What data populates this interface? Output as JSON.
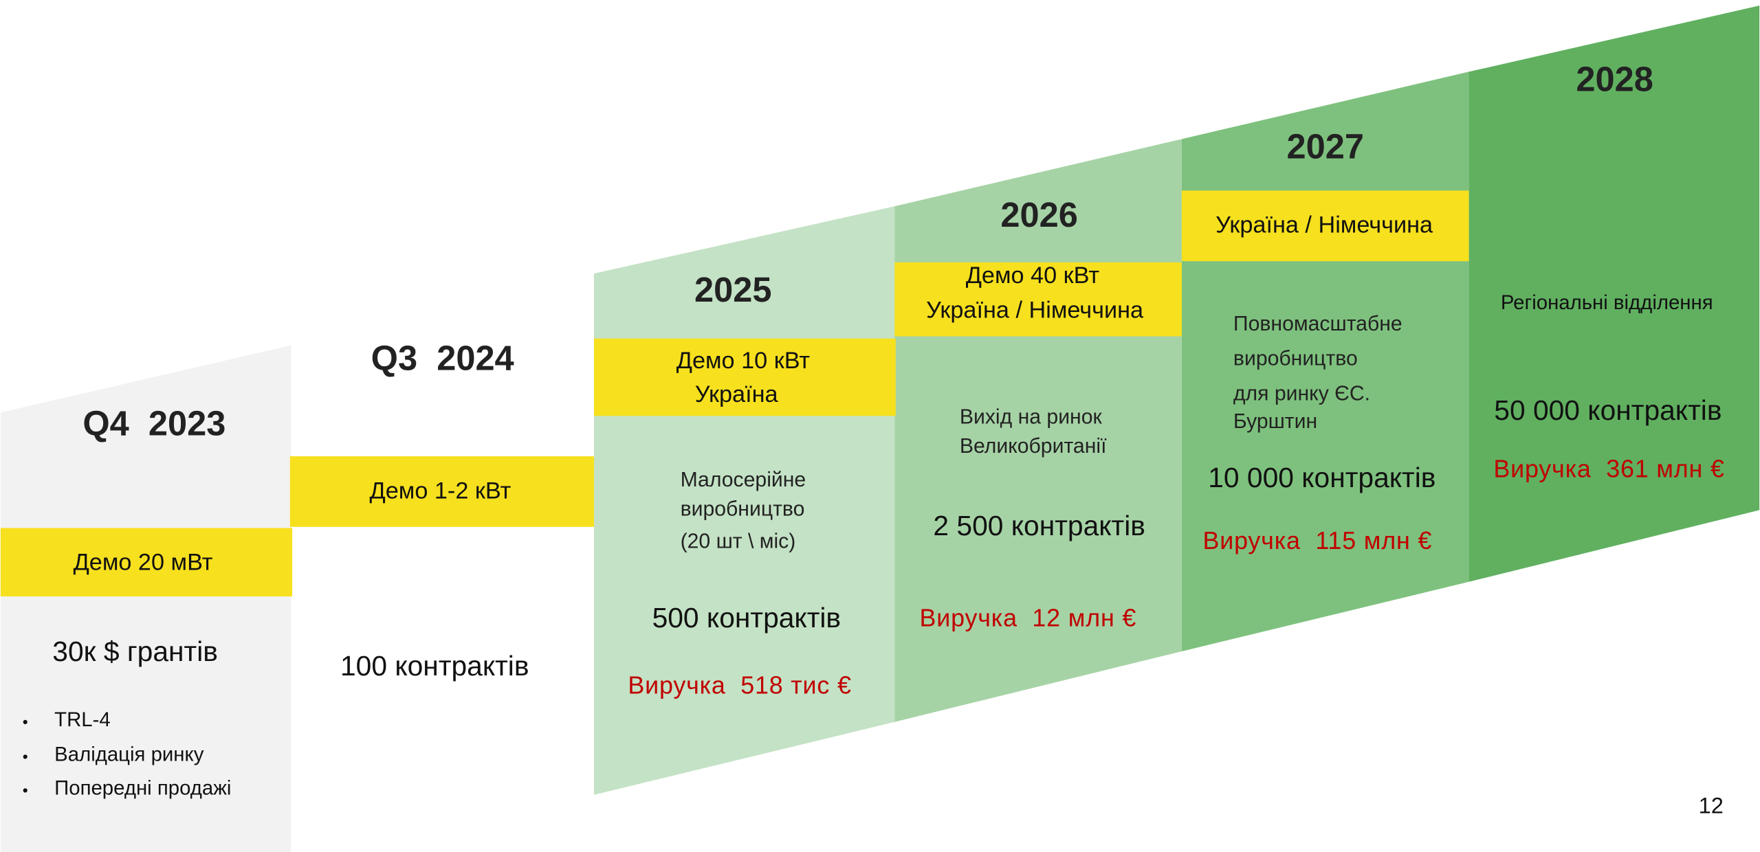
{
  "columns": [
    {
      "year": "Q4  2023",
      "demo": [
        "Демо 20 мВт"
      ],
      "funding": "30к $ грантів",
      "bullets": [
        "TRL-4",
        "Валідація ринку",
        "Попередні продажі"
      ]
    },
    {
      "year": "Q3  2024",
      "demo": [
        "Демо 1-2 кВт"
      ],
      "contracts": "100 контрактів"
    },
    {
      "year": "2025",
      "demo": [
        "Демо 10 кВт",
        "Україна"
      ],
      "description": [
        "Малосерійне",
        "виробництво",
        "(20 шт \\ міс)"
      ],
      "contracts": "500 контрактів",
      "revenue": "Виручка  518 тис €"
    },
    {
      "year": "2026",
      "demo": [
        "Демо 40 кВт",
        "Україна / Німеччина"
      ],
      "description": [
        "Вихід на ринок",
        "Великобританії"
      ],
      "contracts": "2 500 контрактів",
      "revenue": "Виручка  12 млн €"
    },
    {
      "year": "2027",
      "demo": [
        "Україна / Німеччина"
      ],
      "description": [
        "Повномасштабне",
        "виробництво",
        "для ринку ЄС.",
        "Бурштин"
      ],
      "contracts": "10 000 контрактів",
      "revenue": "Виручка  115 млн €"
    },
    {
      "year": "2028",
      "description": [
        "Регіональні відділення"
      ],
      "contracts": "50 000 контрактів",
      "revenue": "Виручка  361 млн €"
    }
  ],
  "page_number": "12"
}
